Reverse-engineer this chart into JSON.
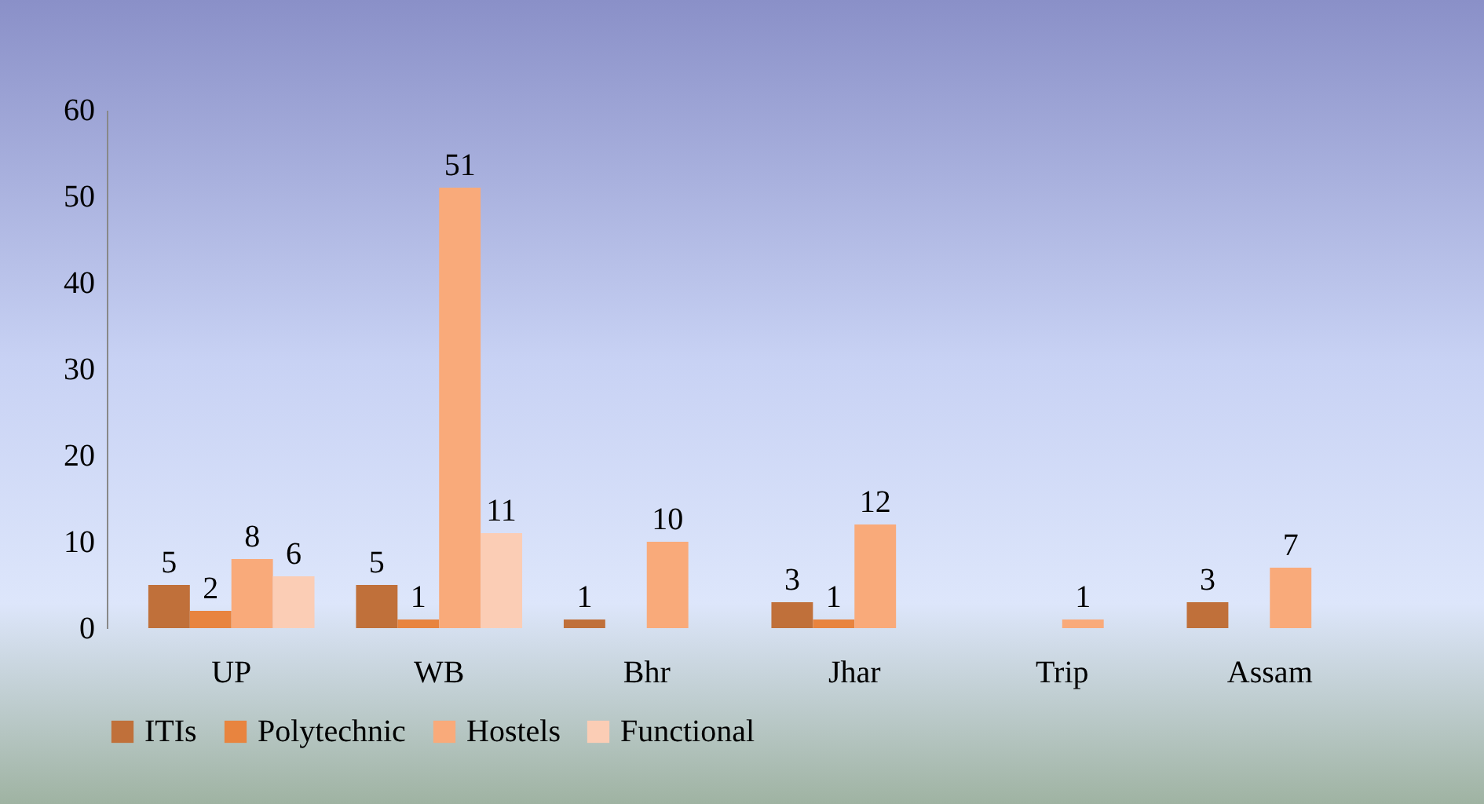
{
  "chart_data": {
    "type": "bar",
    "categories": [
      "UP",
      "WB",
      "Bhr",
      "Jhar",
      "Trip",
      "Assam"
    ],
    "series": [
      {
        "name": "ITIs",
        "color": "#c0703a",
        "values": [
          5,
          5,
          1,
          3,
          null,
          3
        ]
      },
      {
        "name": "Polytechnic",
        "color": "#e8843f",
        "values": [
          2,
          1,
          null,
          1,
          null,
          null
        ]
      },
      {
        "name": "Hostels",
        "color": "#f9aa7a",
        "values": [
          8,
          51,
          10,
          12,
          1,
          7
        ]
      },
      {
        "name": "Functional",
        "color": "#fbcdb5",
        "values": [
          6,
          11,
          null,
          null,
          null,
          null
        ]
      }
    ],
    "ylim": [
      0,
      60
    ],
    "yticks": [
      0,
      10,
      20,
      30,
      40,
      50,
      60
    ],
    "grid": false,
    "legend": "bottom",
    "data_labels": true
  }
}
